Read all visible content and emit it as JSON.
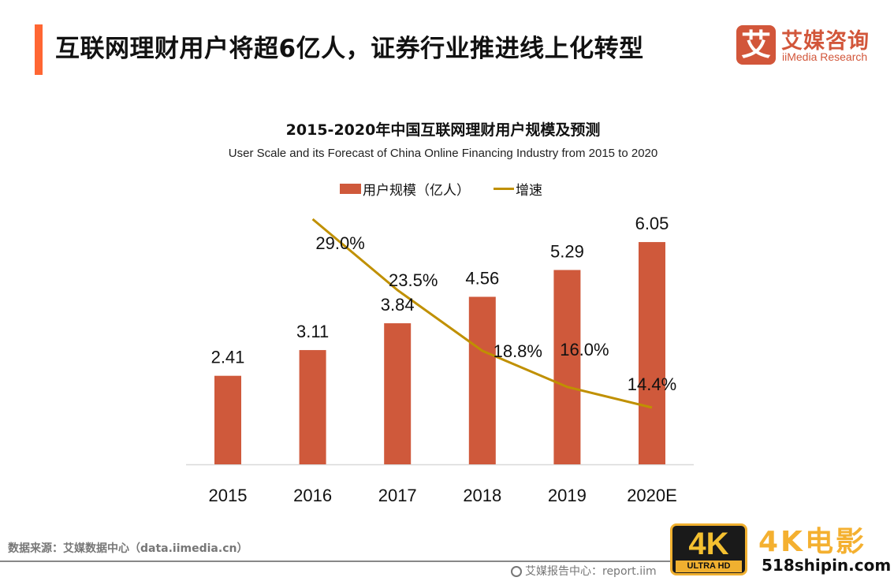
{
  "header": {
    "title": "互联网理财用户将超6亿人，证券行业推进线上化转型",
    "accent_color": "#ff6633"
  },
  "logo": {
    "mark": "艾",
    "name_cn": "艾媒咨询",
    "name_en": "iiMedia Research",
    "color": "#d2563a"
  },
  "chart_data": {
    "type": "bar",
    "title": "2015-2020年中国互联网理财用户规模及预测",
    "subtitle": "User Scale and its Forecast of China Online Financing Industry from 2015 to 2020",
    "xlabel": "",
    "ylabel": "",
    "grid": false,
    "legend_position": "top-center",
    "categories": [
      "2015",
      "2016",
      "2017",
      "2018",
      "2019",
      "2020E"
    ],
    "series": [
      {
        "name": "用户规模（亿人）",
        "type": "bar",
        "color": "#cf593b",
        "values": [
          2.41,
          3.11,
          3.84,
          4.56,
          5.29,
          6.05
        ],
        "labels": [
          "2.41",
          "3.11",
          "3.84",
          "4.56",
          "5.29",
          "6.05"
        ]
      },
      {
        "name": "增速",
        "type": "line",
        "color": "#c09000",
        "values": [
          null,
          29.0,
          23.5,
          18.8,
          16.0,
          14.4
        ],
        "labels": [
          "",
          "29.0%",
          "23.5%",
          "18.8%",
          "16.0%",
          "14.4%"
        ]
      }
    ]
  },
  "footer": {
    "source": "数据来源：艾媒数据中心（data.iimedia.cn）",
    "report_center": "艾媒报告中心：report.iim"
  },
  "watermark": {
    "badge_main": "4K",
    "badge_sub": "ULTRA HD",
    "title": "4K电影",
    "url": "518shipin.com"
  }
}
